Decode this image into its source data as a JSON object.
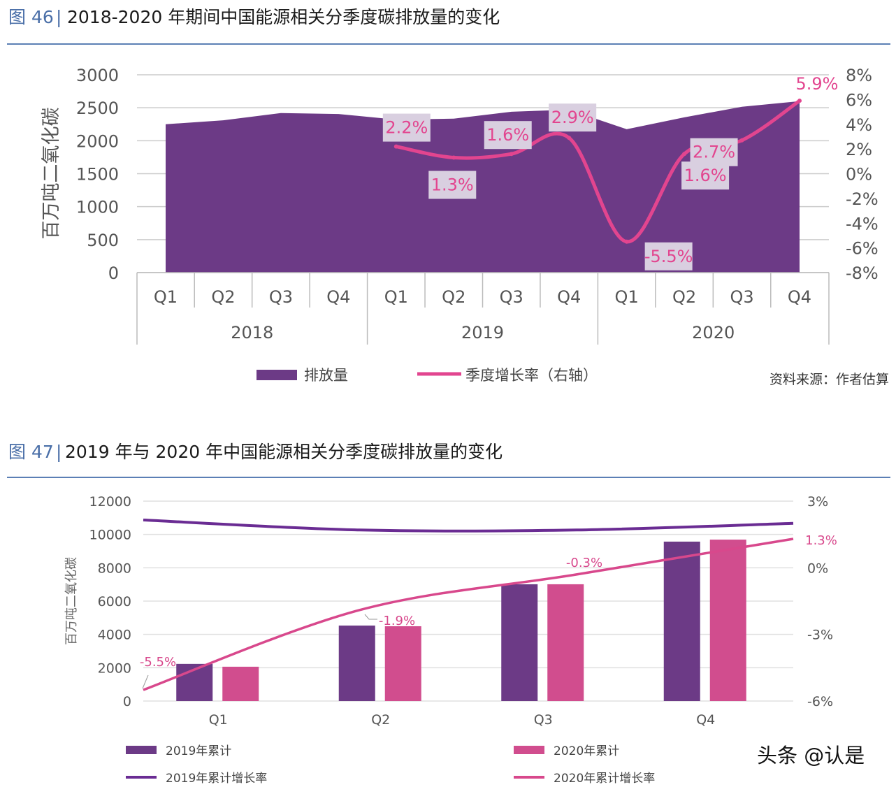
{
  "chart_data": [
    {
      "type": "area",
      "figure_label": "图 46",
      "title": "2018-2020 年期间中国能源相关分季度碳排放量的变化",
      "ylabel": "百万吨二氧化碳",
      "ylim": [
        0,
        3000
      ],
      "yticks": [
        "0",
        "500",
        "1000",
        "1500",
        "2000",
        "2500",
        "3000"
      ],
      "y2lim": [
        -8,
        8
      ],
      "y2ticks": [
        "-8%",
        "-6%",
        "-4%",
        "-2%",
        "0%",
        "2%",
        "4%",
        "6%",
        "8%"
      ],
      "years": [
        "2018",
        "2019",
        "2020"
      ],
      "categories": [
        "Q1",
        "Q2",
        "Q3",
        "Q4",
        "Q1",
        "Q2",
        "Q3",
        "Q4",
        "Q1",
        "Q2",
        "Q3",
        "Q4"
      ],
      "grid": true,
      "series": [
        {
          "name": "排放量",
          "kind": "area",
          "color": "#6c3a86",
          "values": [
            2250,
            2310,
            2420,
            2405,
            2320,
            2335,
            2440,
            2470,
            2175,
            2355,
            2515,
            2600
          ]
        },
        {
          "name": "季度增长率（右轴）",
          "kind": "line",
          "axis": "right",
          "color": "#e2458f",
          "values": [
            null,
            null,
            null,
            null,
            2.2,
            1.3,
            1.6,
            2.9,
            -5.5,
            1.6,
            2.7,
            5.9
          ],
          "labels": [
            "",
            "",
            "",
            "",
            "2.2%",
            "1.3%",
            "1.6%",
            "2.9%",
            "-5.5%",
            "1.6%",
            "2.7%",
            "5.9%"
          ]
        }
      ],
      "legend_position": "bottom",
      "source": "资料来源：作者估算"
    },
    {
      "type": "bar",
      "figure_label": "图 47",
      "title": "2019 年与 2020 年中国能源相关分季度碳排放量的变化",
      "ylabel": "百万吨二氧化碳",
      "ylim": [
        0,
        12000
      ],
      "yticks": [
        "0",
        "2000",
        "4000",
        "6000",
        "8000",
        "10000",
        "12000"
      ],
      "y2lim": [
        -6,
        3
      ],
      "y2ticks": [
        "-6%",
        "-3%",
        "0%",
        "3%"
      ],
      "categories": [
        "Q1",
        "Q2",
        "Q3",
        "Q4"
      ],
      "grid": true,
      "series": [
        {
          "name": "2019年累计",
          "kind": "bar",
          "color": "#6c3a86",
          "values": [
            2230,
            4530,
            7010,
            9570
          ]
        },
        {
          "name": "2020年累计",
          "kind": "bar",
          "color": "#d14d8e",
          "values": [
            2060,
            4490,
            7010,
            9690
          ]
        },
        {
          "name": "2019年累计增长率",
          "kind": "line",
          "axis": "right",
          "color": "#6a2c93",
          "values": [
            2.15,
            1.7,
            1.7,
            2.0
          ]
        },
        {
          "name": "2020年累计增长率",
          "kind": "line",
          "axis": "right",
          "color": "#d8488c",
          "values": [
            -5.5,
            -1.9,
            -0.3,
            1.3
          ],
          "labels": [
            "-5.5%",
            "-1.9%",
            "-0.3%",
            "1.3%"
          ]
        }
      ],
      "legend_position": "bottom"
    }
  ],
  "watermark": "头条 @认是"
}
